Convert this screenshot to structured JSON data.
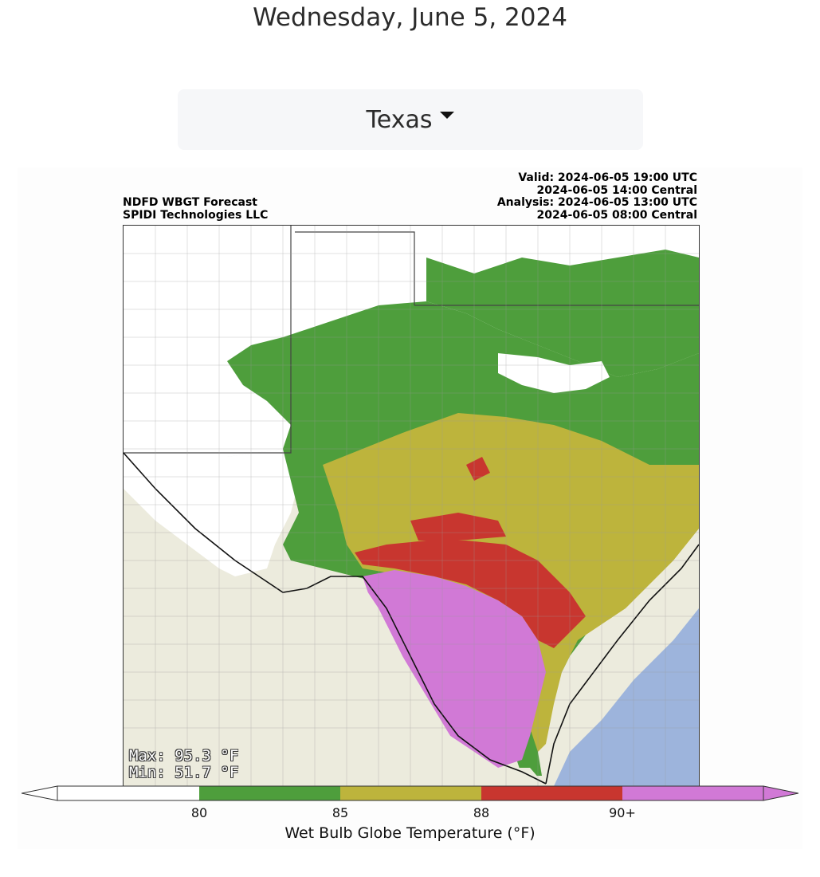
{
  "page": {
    "date": "Wednesday, June 5, 2024"
  },
  "region_selector": {
    "label": "Texas",
    "icon": "caret-down-icon"
  },
  "figure": {
    "title_left": "NDFD WBGT Forecast\nSPIDI Technologies LLC",
    "title_right": "Valid: 2024-06-05 19:00 UTC\n2024-06-05 14:00 Central\nAnalysis: 2024-06-05 13:00 UTC\n2024-06-05 08:00 Central",
    "max_label": "Max: 95.3 °F",
    "min_label": "Min: 51.7 °F",
    "colorbar": {
      "title": "Wet Bulb Globe Temperature (°F)",
      "tick_labels": [
        "80",
        "85",
        "88",
        "90+"
      ],
      "bins": [
        {
          "label": "<80",
          "color": "#ffffff"
        },
        {
          "label": "80-85",
          "color": "#4e9e3c"
        },
        {
          "label": "85-88",
          "color": "#bdb43c"
        },
        {
          "label": "88-90",
          "color": "#c8362f"
        },
        {
          "label": "90+",
          "color": "#d179d6"
        }
      ]
    },
    "colors": {
      "land": "#ecebdd",
      "water": "#9db4dc",
      "border": "#444444"
    }
  }
}
